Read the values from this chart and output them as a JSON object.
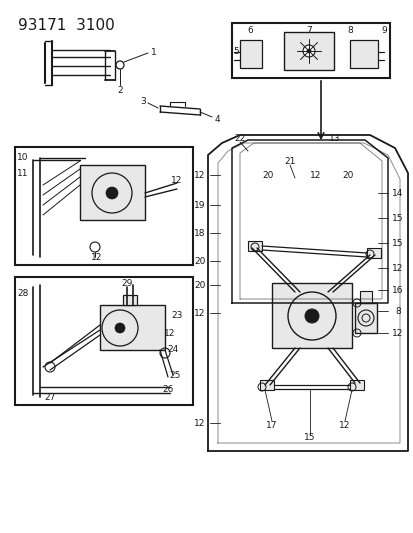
{
  "title": "93171  3100",
  "bg_color": "#ffffff",
  "line_color": "#1a1a1a",
  "gray_fill": "#cccccc",
  "light_gray": "#e8e8e8",
  "title_fontsize": 11,
  "label_fontsize": 6.5,
  "fig_w": 4.14,
  "fig_h": 5.33,
  "dpi": 100
}
